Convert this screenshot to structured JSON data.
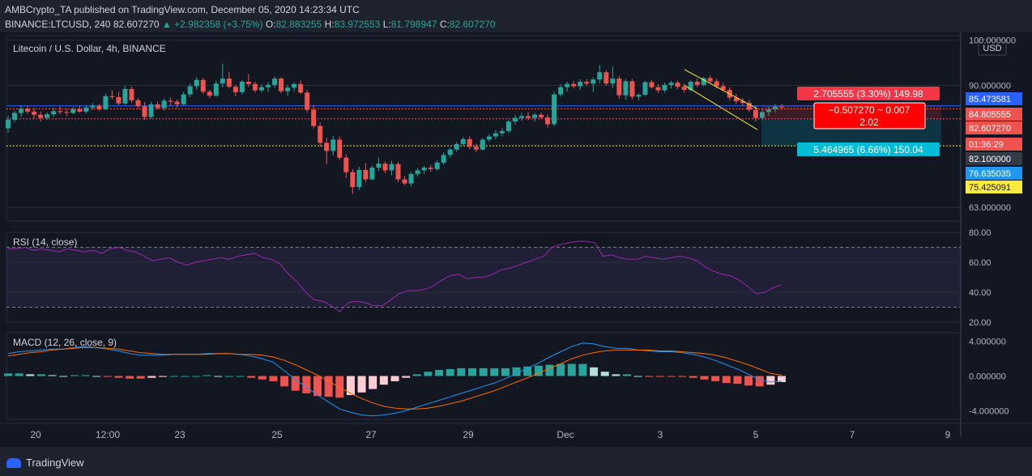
{
  "header": {
    "published_line": "AMBCrypto_TA published on TradingView.com, December 05, 2020 14:23:34 UTC",
    "symbol": "BINANCE:LTCUSD, 240",
    "last": "82.607270",
    "change": "+2.982358 (+3.75%)",
    "o_label": "O:",
    "o": "82.883255",
    "h_label": "H:",
    "h": "83.972553",
    "l_label": "L:",
    "l": "81.798947",
    "c_label": "C:",
    "c": "82.607270"
  },
  "footer": {
    "brand": "TradingView"
  },
  "colors": {
    "bg": "#131722",
    "up": "#26a69a",
    "down": "#ef5350",
    "rsi": "#9c27b0",
    "macd": "#2196f3",
    "signal": "#ff6d00",
    "hist_up_strong": "#26a69a",
    "hist_up_weak": "#b2dfdb",
    "hist_down_strong": "#ef5350",
    "hist_down_weak": "#ffcdd2",
    "channel": "#ffeb3b",
    "measure": "#00bcd4"
  },
  "chart_data": [
    {
      "type": "candlestick",
      "title": "Litecoin / U.S. Dollar, 4h, BINANCE",
      "unit_label": "USD",
      "ylim": [
        60,
        101
      ],
      "y_ticks": [
        "100.000000",
        "90.000000",
        "63.000000"
      ],
      "x_ticks": [
        "20",
        "12:00",
        "23",
        "25",
        "27",
        "29",
        "Dec",
        "3",
        "5",
        "7",
        "9"
      ],
      "ohlc": [
        [
          80.5,
          83.2,
          79.5,
          82.4
        ],
        [
          82.4,
          84.4,
          81.8,
          83.9
        ],
        [
          83.9,
          85.6,
          83.0,
          84.8
        ],
        [
          84.8,
          85.5,
          83.7,
          84.2
        ],
        [
          84.2,
          85.0,
          82.7,
          83.5
        ],
        [
          83.5,
          84.2,
          82.0,
          82.8
        ],
        [
          82.8,
          84.0,
          82.4,
          83.6
        ],
        [
          83.6,
          85.0,
          83.0,
          84.3
        ],
        [
          84.3,
          85.3,
          83.6,
          84.1
        ],
        [
          84.1,
          84.9,
          83.2,
          83.9
        ],
        [
          83.9,
          85.2,
          83.6,
          84.7
        ],
        [
          84.7,
          85.5,
          83.9,
          84.2
        ],
        [
          84.2,
          85.6,
          83.7,
          85.1
        ],
        [
          85.1,
          86.1,
          84.6,
          85.5
        ],
        [
          85.5,
          85.9,
          84.3,
          84.7
        ],
        [
          84.7,
          88.2,
          84.5,
          87.6
        ],
        [
          87.6,
          88.9,
          86.9,
          87.4
        ],
        [
          87.4,
          88.6,
          85.6,
          86.0
        ],
        [
          86.0,
          89.8,
          85.7,
          89.2
        ],
        [
          89.2,
          89.7,
          86.1,
          86.7
        ],
        [
          86.7,
          87.2,
          84.9,
          85.4
        ],
        [
          85.4,
          86.3,
          82.3,
          83.0
        ],
        [
          83.0,
          86.4,
          82.6,
          85.8
        ],
        [
          85.8,
          86.5,
          84.7,
          85.0
        ],
        [
          85.0,
          87.1,
          84.4,
          86.6
        ],
        [
          86.6,
          87.3,
          85.5,
          86.4
        ],
        [
          86.4,
          86.9,
          85.0,
          85.8
        ],
        [
          85.8,
          88.6,
          85.6,
          88.0
        ],
        [
          88.0,
          90.4,
          87.4,
          89.8
        ],
        [
          89.8,
          91.8,
          89.0,
          91.2
        ],
        [
          91.2,
          91.7,
          88.1,
          88.6
        ],
        [
          88.6,
          89.0,
          87.2,
          87.7
        ],
        [
          87.7,
          91.0,
          87.5,
          90.4
        ],
        [
          90.4,
          94.8,
          89.6,
          91.5
        ],
        [
          91.5,
          93.0,
          89.3,
          89.7
        ],
        [
          89.7,
          90.2,
          87.6,
          88.5
        ],
        [
          88.5,
          91.2,
          88.0,
          90.8
        ],
        [
          90.8,
          92.5,
          89.7,
          90.3
        ],
        [
          90.3,
          90.8,
          88.4,
          88.9
        ],
        [
          88.9,
          90.2,
          88.4,
          89.6
        ],
        [
          89.6,
          90.7,
          88.5,
          90.1
        ],
        [
          90.1,
          92.0,
          89.5,
          91.5
        ],
        [
          91.5,
          91.8,
          88.3,
          88.7
        ],
        [
          88.7,
          90.1,
          87.7,
          89.5
        ],
        [
          89.5,
          90.7,
          88.7,
          90.3
        ],
        [
          90.3,
          91.1,
          88.1,
          88.4
        ],
        [
          88.4,
          89.0,
          84.0,
          84.6
        ],
        [
          84.6,
          85.7,
          80.5,
          81.0
        ],
        [
          81.0,
          81.8,
          76.5,
          77.3
        ],
        [
          77.3,
          78.4,
          72.5,
          75.5
        ],
        [
          75.5,
          78.8,
          74.5,
          78.0
        ],
        [
          78.0,
          78.7,
          73.5,
          74.0
        ],
        [
          74.0,
          74.8,
          69.5,
          70.8
        ],
        [
          70.8,
          71.5,
          66.0,
          67.5
        ],
        [
          67.5,
          72.0,
          66.8,
          71.3
        ],
        [
          71.3,
          72.8,
          68.6,
          69.2
        ],
        [
          69.2,
          72.3,
          69.0,
          71.8
        ],
        [
          71.8,
          74.0,
          71.0,
          72.7
        ],
        [
          72.7,
          73.2,
          70.6,
          71.2
        ],
        [
          71.2,
          73.4,
          70.1,
          72.6
        ],
        [
          72.6,
          73.1,
          68.6,
          69.2
        ],
        [
          69.2,
          70.0,
          67.9,
          68.3
        ],
        [
          68.3,
          70.9,
          67.7,
          70.4
        ],
        [
          70.4,
          71.7,
          69.8,
          71.2
        ],
        [
          71.2,
          72.2,
          70.4,
          71.8
        ],
        [
          71.8,
          72.4,
          70.9,
          71.5
        ],
        [
          71.5,
          73.4,
          71.1,
          72.9
        ],
        [
          72.9,
          75.2,
          72.4,
          74.6
        ],
        [
          74.6,
          76.2,
          74.0,
          75.8
        ],
        [
          75.8,
          77.5,
          75.3,
          77.0
        ],
        [
          77.0,
          78.6,
          76.7,
          78.1
        ],
        [
          78.1,
          78.7,
          75.8,
          76.4
        ],
        [
          76.4,
          77.1,
          75.2,
          75.8
        ],
        [
          75.8,
          78.4,
          75.6,
          78.0
        ],
        [
          78.0,
          79.2,
          77.5,
          78.7
        ],
        [
          78.7,
          80.1,
          78.1,
          79.4
        ],
        [
          79.4,
          80.6,
          78.7,
          79.9
        ],
        [
          79.9,
          82.4,
          79.4,
          82.0
        ],
        [
          82.0,
          83.4,
          81.3,
          82.8
        ],
        [
          82.8,
          83.9,
          82.1,
          83.2
        ],
        [
          83.2,
          84.1,
          82.3,
          82.8
        ],
        [
          82.8,
          83.9,
          82.0,
          83.5
        ],
        [
          83.5,
          84.0,
          82.5,
          82.9
        ],
        [
          82.9,
          83.6,
          80.7,
          81.4
        ],
        [
          81.4,
          88.6,
          81.0,
          88.0
        ],
        [
          88.0,
          90.2,
          87.5,
          89.6
        ],
        [
          89.6,
          90.8,
          88.6,
          90.3
        ],
        [
          90.3,
          91.0,
          89.3,
          89.8
        ],
        [
          89.8,
          91.3,
          89.0,
          90.8
        ],
        [
          90.8,
          91.4,
          89.9,
          90.4
        ],
        [
          90.4,
          91.8,
          88.6,
          91.3
        ],
        [
          91.3,
          94.5,
          90.5,
          92.9
        ],
        [
          92.9,
          93.4,
          89.9,
          90.4
        ],
        [
          90.4,
          94.2,
          89.4,
          91.5
        ],
        [
          91.5,
          92.1,
          87.1,
          87.8
        ],
        [
          87.8,
          91.4,
          86.8,
          90.9
        ],
        [
          90.9,
          91.4,
          86.9,
          87.5
        ],
        [
          87.5,
          88.2,
          86.7,
          87.9
        ],
        [
          87.9,
          91.0,
          87.7,
          90.7
        ],
        [
          90.7,
          91.2,
          89.3,
          89.6
        ],
        [
          89.6,
          90.3,
          88.3,
          88.9
        ],
        [
          88.9,
          90.6,
          88.4,
          90.1
        ],
        [
          90.1,
          91.0,
          89.3,
          90.6
        ],
        [
          90.6,
          91.1,
          89.2,
          89.7
        ],
        [
          89.7,
          90.4,
          88.4,
          89.0
        ],
        [
          89.0,
          91.2,
          88.6,
          90.8
        ],
        [
          90.8,
          91.5,
          89.6,
          90.1
        ],
        [
          90.1,
          91.9,
          89.8,
          91.6
        ],
        [
          91.6,
          92.2,
          90.4,
          90.9
        ],
        [
          90.9,
          91.5,
          89.3,
          89.8
        ],
        [
          89.8,
          90.6,
          88.6,
          89.0
        ],
        [
          89.0,
          89.6,
          86.6,
          87.3
        ],
        [
          87.3,
          88.1,
          85.9,
          86.5
        ],
        [
          86.5,
          87.2,
          85.4,
          86.1
        ],
        [
          86.1,
          86.8,
          84.1,
          84.6
        ],
        [
          84.6,
          85.5,
          82.0,
          82.8
        ],
        [
          82.8,
          84.8,
          82.4,
          84.1
        ],
        [
          84.1,
          85.3,
          83.2,
          84.7
        ],
        [
          84.7,
          85.9,
          84.0,
          85.3
        ],
        [
          85.3,
          85.9,
          84.6,
          85.2
        ]
      ],
      "horizontal_lines": [
        {
          "price": 85.473581,
          "color": "#2962ff",
          "style": "solid"
        },
        {
          "price": 84.805555,
          "color": "#ef5350",
          "style": "dotted"
        },
        {
          "price": 82.60727,
          "color": "#ef5350",
          "style": "dotted"
        },
        {
          "price": 76.635035,
          "color": "#ffeb3b",
          "style": "dotted"
        }
      ],
      "price_labels": [
        {
          "text": "85.473581",
          "color": "#2962ff",
          "price": 85.473581
        },
        {
          "text": "84.805555",
          "color": "#ef5350",
          "price": 84.805555
        },
        {
          "text": "82.607270",
          "color": "#ef5350",
          "price": 82.60727
        },
        {
          "text": "01:36:29",
          "color": "#ef5350",
          "price": 82.60727
        },
        {
          "text": "82.100000",
          "color": "#363a45",
          "price": 82.1
        },
        {
          "text": "76.635035",
          "color": "#2196f3",
          "price": 76.635035
        },
        {
          "text": "75.425091",
          "color": "#ffeb3b",
          "price": 75.425091
        }
      ],
      "annotations": [
        {
          "text": "2.705555 (3.30%) 149.98",
          "color": "#f23645"
        },
        {
          "text": "−0.507270 ~ 0.007",
          "text2": "2.02",
          "color": "#ff0000"
        },
        {
          "text": "5.464965 (6.66%) 150.04",
          "color": "#00bcd4"
        }
      ]
    },
    {
      "type": "line",
      "title": "RSI (14, close)",
      "ylim": [
        20,
        80
      ],
      "y_ticks": [
        "80.00",
        "60.00",
        "40.00",
        "20.00"
      ],
      "bands": [
        30,
        70
      ],
      "values": [
        69,
        69,
        70,
        68,
        69,
        68,
        67,
        69,
        68,
        67,
        68,
        66,
        69,
        70,
        68,
        67,
        64,
        61,
        62,
        63,
        60,
        58,
        60,
        61,
        62,
        63,
        62,
        64,
        65,
        66,
        63,
        62,
        59,
        52,
        47,
        40,
        35,
        34,
        31,
        27,
        33,
        34,
        33,
        31,
        31,
        35,
        39,
        41,
        41,
        42,
        44,
        48,
        51,
        52,
        49,
        50,
        50,
        52,
        55,
        56,
        58,
        60,
        62,
        64,
        70,
        72,
        73,
        74,
        74,
        73,
        64,
        65,
        63,
        62,
        62,
        64,
        63,
        62,
        63,
        64,
        63,
        61,
        57,
        54,
        52,
        51,
        48,
        44,
        39,
        40,
        43,
        45
      ]
    },
    {
      "type": "line",
      "title": "MACD (12, 26, close, 9)",
      "ylim": [
        -5,
        5
      ],
      "y_ticks": [
        "4.000000",
        "0.000000",
        "-4.000000"
      ],
      "macd": [
        2.6,
        2.8,
        2.9,
        3.0,
        3.1,
        3.1,
        3.3,
        3.4,
        3.3,
        3.1,
        2.9,
        2.6,
        2.4,
        2.4,
        2.4,
        2.5,
        2.5,
        2.5,
        2.6,
        2.6,
        2.6,
        2.5,
        2.3,
        2.0,
        1.6,
        0.6,
        -0.4,
        -1.3,
        -2.2,
        -3.0,
        -3.8,
        -4.2,
        -4.5,
        -4.6,
        -4.5,
        -4.3,
        -4.0,
        -3.6,
        -3.2,
        -2.8,
        -2.4,
        -2.0,
        -1.6,
        -1.2,
        -0.8,
        -0.3,
        0.3,
        0.9,
        1.5,
        2.2,
        2.8,
        3.4,
        3.8,
        3.7,
        3.4,
        3.2,
        3.2,
        3.0,
        2.9,
        2.8,
        2.8,
        2.7,
        2.5,
        2.2,
        1.8,
        1.3,
        0.8,
        0.2,
        -0.4,
        -0.7,
        -0.6
      ],
      "signal": [
        2.3,
        2.5,
        2.7,
        2.8,
        3.0,
        3.1,
        3.2,
        3.3,
        3.3,
        3.2,
        3.1,
        2.9,
        2.7,
        2.6,
        2.5,
        2.5,
        2.5,
        2.5,
        2.5,
        2.6,
        2.6,
        2.5,
        2.5,
        2.4,
        2.2,
        1.8,
        1.3,
        0.7,
        0.1,
        -0.6,
        -1.3,
        -2.0,
        -2.6,
        -3.1,
        -3.5,
        -3.7,
        -3.8,
        -3.8,
        -3.7,
        -3.5,
        -3.2,
        -2.9,
        -2.5,
        -2.1,
        -1.7,
        -1.2,
        -0.7,
        -0.2,
        0.3,
        0.9,
        1.4,
        2.0,
        2.4,
        2.7,
        2.9,
        3.0,
        3.0,
        3.0,
        3.0,
        2.9,
        2.9,
        2.8,
        2.7,
        2.6,
        2.4,
        2.1,
        1.7,
        1.3,
        0.8,
        0.3,
        0.1
      ],
      "hist": [
        0.3,
        0.3,
        0.2,
        0.2,
        0.1,
        0.0,
        0.1,
        0.1,
        0.0,
        -0.1,
        -0.2,
        -0.3,
        -0.3,
        -0.2,
        -0.1,
        0.0,
        0.0,
        0.0,
        0.1,
        0.0,
        0.0,
        0.0,
        -0.2,
        -0.4,
        -0.6,
        -1.2,
        -1.7,
        -2.0,
        -2.3,
        -2.4,
        -2.5,
        -2.2,
        -1.9,
        -1.5,
        -1.0,
        -0.6,
        -0.2,
        0.2,
        0.5,
        0.7,
        0.8,
        0.9,
        0.9,
        0.9,
        0.9,
        0.9,
        1.0,
        1.1,
        1.2,
        1.3,
        1.4,
        1.4,
        1.4,
        1.0,
        0.5,
        0.2,
        0.2,
        0.0,
        -0.1,
        -0.1,
        -0.1,
        -0.1,
        -0.2,
        -0.4,
        -0.6,
        -0.8,
        -0.9,
        -1.1,
        -1.2,
        -1.0,
        -0.7
      ]
    }
  ]
}
